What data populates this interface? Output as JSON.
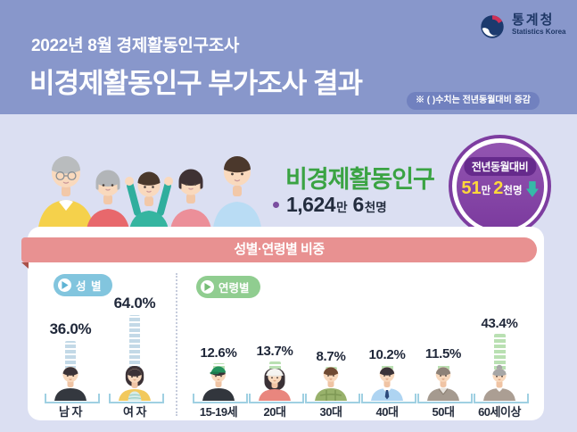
{
  "header": {
    "survey_title": "2022년 8월 경제활동인구조사",
    "main_title": "비경제활동인구 부가조사 결과",
    "note": "※ ( )수치는 전년동월대비 증감",
    "logo": {
      "title": "통계청",
      "subtitle": "Statistics Korea"
    }
  },
  "summary": {
    "title": "비경제활동인구",
    "value_main": "1,624",
    "value_unit1": "만",
    "value_sub": "6",
    "value_unit2": "천명",
    "badge": {
      "caption": "전년동월대비",
      "num1": "51",
      "unit1": "만",
      "num2": "2",
      "unit2": "천명",
      "direction": "down"
    }
  },
  "section": {
    "title": "성별·연령별 비중",
    "gender": {
      "label": "성 별",
      "items": [
        {
          "label": "남 자",
          "value": "36.0%",
          "pct": 36.0
        },
        {
          "label": "여 자",
          "value": "64.0%",
          "pct": 64.0
        }
      ]
    },
    "age": {
      "label": "연령별",
      "items": [
        {
          "label": "15-19세",
          "value": "12.6%",
          "pct": 12.6
        },
        {
          "label": "20대",
          "value": "13.7%",
          "pct": 13.7
        },
        {
          "label": "30대",
          "value": "8.7%",
          "pct": 8.7
        },
        {
          "label": "40대",
          "value": "10.2%",
          "pct": 10.2
        },
        {
          "label": "50대",
          "value": "11.5%",
          "pct": 11.5
        },
        {
          "label": "60세이상",
          "value": "43.4%",
          "pct": 43.4
        }
      ]
    }
  },
  "colors": {
    "header_bg": "#8897cb",
    "body_bg": "#dbdff2",
    "ribbon": "#e89191",
    "title_green": "#3aa343",
    "badge_purple": "#7d3da0",
    "badge_yellow": "#ffd83a",
    "arrow_teal": "#35b9a8",
    "gender_bar": "#c3d9e7",
    "age_bar": "#b9e0b2"
  },
  "chart_data": [
    {
      "type": "bar",
      "title": "성별 비중",
      "categories": [
        "남자",
        "여자"
      ],
      "values": [
        36.0,
        64.0
      ],
      "unit": "%",
      "ylabel": "비중",
      "annotation": "비경제활동인구 총 1,624만 6천명, 전년동월대비 51만 2천명 감소"
    },
    {
      "type": "bar",
      "title": "연령별 비중",
      "categories": [
        "15-19세",
        "20대",
        "30대",
        "40대",
        "50대",
        "60세이상"
      ],
      "values": [
        12.6,
        13.7,
        8.7,
        10.2,
        11.5,
        43.4
      ],
      "unit": "%",
      "ylabel": "비중"
    }
  ]
}
